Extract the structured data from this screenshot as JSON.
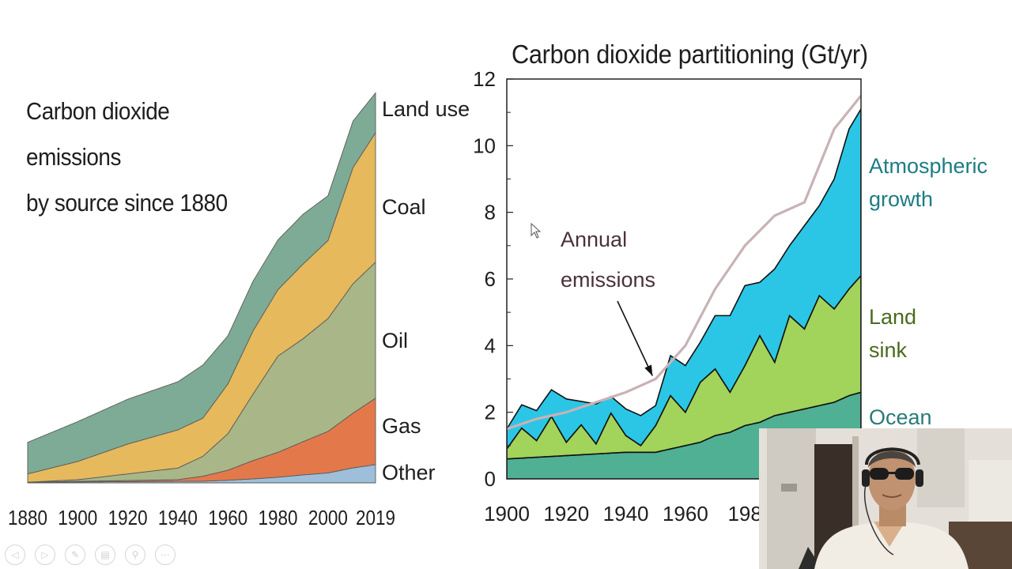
{
  "chart_data": [
    {
      "type": "area",
      "stacked": true,
      "title_lines": [
        "Carbon dioxide emissions",
        "by source since 1880"
      ],
      "x_ticks": [
        1880,
        1900,
        1920,
        1940,
        1960,
        1980,
        2000,
        2019
      ],
      "xlim": [
        1880,
        2019
      ],
      "ylim": [
        0,
        12
      ],
      "grid": false,
      "legend_placement": "right, labels beside each band",
      "series": [
        {
          "name": "Other",
          "color": "#9dbfd9",
          "x": [
            1880,
            1950,
            1960,
            1970,
            1980,
            1990,
            2000,
            2010,
            2019
          ],
          "values": [
            0.02,
            0.05,
            0.08,
            0.12,
            0.17,
            0.24,
            0.3,
            0.45,
            0.55
          ]
        },
        {
          "name": "Gas",
          "color": "#e3794a",
          "x": [
            1880,
            1940,
            1950,
            1960,
            1970,
            1980,
            1990,
            2000,
            2010,
            2019
          ],
          "values": [
            0.0,
            0.05,
            0.15,
            0.3,
            0.55,
            0.75,
            1.0,
            1.25,
            1.65,
            2.0
          ]
        },
        {
          "name": "Oil",
          "color": "#a9b687",
          "x": [
            1880,
            1900,
            1920,
            1940,
            1950,
            1960,
            1970,
            1980,
            1990,
            2000,
            2010,
            2019
          ],
          "values": [
            0.0,
            0.05,
            0.2,
            0.35,
            0.6,
            1.1,
            2.0,
            2.9,
            3.1,
            3.4,
            3.9,
            4.1
          ]
        },
        {
          "name": "Coal",
          "color": "#e5b95c",
          "x": [
            1880,
            1900,
            1920,
            1940,
            1950,
            1960,
            1970,
            1980,
            1990,
            2000,
            2010,
            2019
          ],
          "values": [
            0.25,
            0.55,
            0.9,
            1.15,
            1.15,
            1.5,
            1.9,
            2.0,
            2.25,
            2.35,
            3.5,
            3.9
          ]
        },
        {
          "name": "Land use",
          "color": "#7eab95",
          "x": [
            1880,
            1900,
            1920,
            1940,
            1950,
            1960,
            1970,
            1980,
            1990,
            2000,
            2010,
            2019
          ],
          "values": [
            0.95,
            1.2,
            1.35,
            1.45,
            1.6,
            1.45,
            1.5,
            1.5,
            1.5,
            1.35,
            1.4,
            1.2
          ]
        }
      ]
    },
    {
      "type": "area",
      "stacked": true,
      "title": "Carbon dioxide partitioning (Gt/yr)",
      "x_ticks": [
        1900,
        1920,
        1940,
        1960,
        "198"
      ],
      "y_ticks": [
        0,
        2,
        4,
        6,
        8,
        10,
        12
      ],
      "xlim": [
        1900,
        2019
      ],
      "ylim": [
        0,
        12
      ],
      "grid": false,
      "legend_placement": "right, labels beside each band",
      "annotation": {
        "lines": [
          "Annual",
          "emissions"
        ],
        "points_to_year": 1950
      },
      "series": [
        {
          "name": "Ocean",
          "label_lines": [
            "Ocean"
          ],
          "color": "#4fb094",
          "label_color": "#2a7a78",
          "x": [
            1900,
            1910,
            1920,
            1930,
            1940,
            1950,
            1955,
            1960,
            1965,
            1970,
            1975,
            1980,
            1985,
            1990,
            1995,
            2000,
            2005,
            2010,
            2015,
            2019
          ],
          "values": [
            0.6,
            0.65,
            0.7,
            0.75,
            0.8,
            0.8,
            0.9,
            1.0,
            1.1,
            1.3,
            1.4,
            1.6,
            1.7,
            1.9,
            2.0,
            2.1,
            2.2,
            2.3,
            2.5,
            2.6
          ]
        },
        {
          "name": "Land sink",
          "label_lines": [
            "Land",
            "sink"
          ],
          "color": "#a2d35a",
          "label_color": "#4b6a1e",
          "x": [
            1900,
            1905,
            1910,
            1915,
            1920,
            1925,
            1930,
            1935,
            1940,
            1945,
            1950,
            1955,
            1960,
            1965,
            1970,
            1975,
            1980,
            1985,
            1990,
            1995,
            2000,
            2005,
            2010,
            2015,
            2019
          ],
          "values": [
            0.3,
            0.9,
            0.5,
            1.2,
            0.4,
            0.9,
            0.3,
            1.2,
            0.5,
            0.2,
            0.8,
            1.6,
            1.0,
            1.8,
            2.0,
            1.2,
            1.8,
            2.6,
            1.6,
            2.9,
            2.4,
            3.3,
            2.8,
            3.2,
            3.5
          ]
        },
        {
          "name": "Atmospheric growth",
          "label_lines": [
            "Atmospheric",
            "growth"
          ],
          "color": "#2bc6e6",
          "label_color": "#1d7c85",
          "x": [
            1900,
            1905,
            1910,
            1915,
            1920,
            1925,
            1930,
            1935,
            1940,
            1945,
            1950,
            1955,
            1960,
            1965,
            1970,
            1975,
            1980,
            1985,
            1990,
            1995,
            2000,
            2005,
            2010,
            2015,
            2019
          ],
          "values": [
            0.6,
            0.7,
            0.9,
            0.8,
            1.3,
            0.7,
            1.2,
            0.5,
            0.8,
            0.9,
            0.6,
            1.2,
            1.4,
            1.2,
            1.6,
            2.3,
            2.4,
            1.6,
            2.8,
            2.1,
            3.1,
            2.7,
            3.9,
            4.8,
            5.0
          ]
        }
      ],
      "emissions_line": {
        "color": "#c9b2b5",
        "x": [
          1900,
          1910,
          1920,
          1930,
          1940,
          1950,
          1960,
          1970,
          1980,
          1990,
          2000,
          2010,
          2019
        ],
        "values": [
          1.5,
          1.8,
          2.0,
          2.3,
          2.6,
          3.0,
          4.0,
          5.7,
          7.0,
          7.9,
          8.3,
          10.5,
          11.5
        ]
      }
    }
  ],
  "webcam": {
    "description_icon": "presenter-video-icon"
  },
  "toolbar": {
    "buttons": [
      {
        "icon": "previous-icon",
        "glyph": "◁"
      },
      {
        "icon": "next-icon",
        "glyph": "▷"
      },
      {
        "icon": "pen-icon",
        "glyph": "✎"
      },
      {
        "icon": "slides-icon",
        "glyph": "▤"
      },
      {
        "icon": "zoom-icon",
        "glyph": "⚲"
      },
      {
        "icon": "more-icon",
        "glyph": "⋯"
      }
    ]
  }
}
